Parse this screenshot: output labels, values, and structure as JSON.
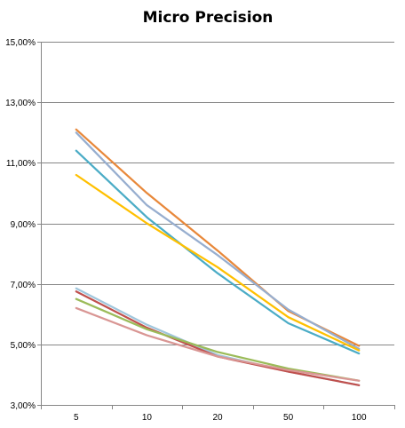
{
  "chart_data": {
    "type": "line",
    "title": "Micro Precision",
    "xlabel": "",
    "ylabel": "",
    "categories": [
      "5",
      "10",
      "20",
      "50",
      "100"
    ],
    "yticks": [
      "3,00%",
      "5,00%",
      "7,00%",
      "9,00%",
      "11,00%",
      "13,00%",
      "15,00%"
    ],
    "ylim": [
      3,
      15
    ],
    "grid": true,
    "legend": "none",
    "series": [
      {
        "color": "#E8883A",
        "values": [
          12.1,
          10.0,
          8.1,
          6.1,
          4.95
        ]
      },
      {
        "color": "#97AECF",
        "values": [
          12.0,
          9.6,
          7.95,
          6.15,
          4.85
        ]
      },
      {
        "color": "#4BACC6",
        "values": [
          11.4,
          9.2,
          7.35,
          5.7,
          4.7
        ]
      },
      {
        "color": "#FFC000",
        "values": [
          10.6,
          9.0,
          7.55,
          5.9,
          4.8
        ]
      },
      {
        "color": "#A0C6DC",
        "values": [
          6.85,
          5.65,
          4.65,
          4.1,
          3.65
        ]
      },
      {
        "color": "#C0504D",
        "values": [
          6.75,
          5.55,
          4.6,
          4.1,
          3.65
        ]
      },
      {
        "color": "#9BBB59",
        "values": [
          6.5,
          5.5,
          4.75,
          4.2,
          3.8
        ]
      },
      {
        "color": "#D99694",
        "values": [
          6.2,
          5.3,
          4.6,
          4.15,
          3.8
        ]
      }
    ]
  }
}
